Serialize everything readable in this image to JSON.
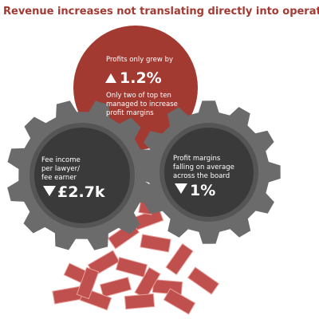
{
  "title": "Revenue increases not translating directly into operating profit",
  "profit_circle": {
    "intro": "Profits only grew by",
    "figure": "1.2%",
    "detail": [
      "Only two of top ten",
      "managed to increase",
      "profit margins"
    ]
  },
  "left_gear": {
    "label": [
      "Fee income",
      "per lawyer/",
      "fee earner"
    ],
    "figure": "£2.7k"
  },
  "right_gear": {
    "label": [
      "Profit margins",
      "falling on average",
      "across the board"
    ],
    "figure": "1%"
  }
}
